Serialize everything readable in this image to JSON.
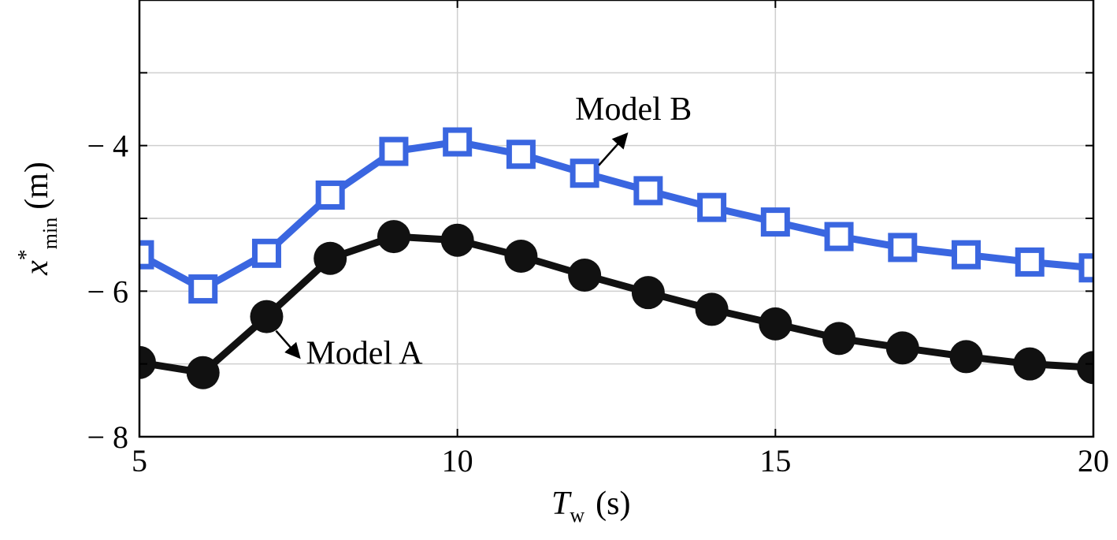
{
  "chart_data": {
    "type": "line",
    "title": "",
    "xlabel": {
      "base": "T",
      "sub": "w",
      "unit": "(s)"
    },
    "ylabel": {
      "base": "x",
      "sup": "*",
      "sub": "min",
      "unit": "(m)"
    },
    "xlim": [
      5,
      20
    ],
    "ylim": [
      -8,
      -2
    ],
    "xticks": [
      5,
      10,
      15,
      20
    ],
    "yticks": [
      -8,
      -6,
      -4
    ],
    "xtick_labels": [
      "5",
      "10",
      "15",
      "20"
    ],
    "ytick_labels": [
      "− 8",
      "− 6",
      "− 4"
    ],
    "grid": true,
    "series": [
      {
        "name": "Model A",
        "color": "#111111",
        "marker": "circle",
        "x": [
          5,
          6,
          7,
          8,
          9,
          10,
          11,
          12,
          13,
          14,
          15,
          16,
          17,
          18,
          19,
          20
        ],
        "y": [
          -6.98,
          -7.12,
          -6.35,
          -5.55,
          -5.25,
          -5.3,
          -5.52,
          -5.78,
          -6.02,
          -6.25,
          -6.45,
          -6.65,
          -6.78,
          -6.9,
          -7.0,
          -7.05
        ]
      },
      {
        "name": "Model B",
        "color": "#3a66e0",
        "marker": "square",
        "x": [
          5,
          6,
          7,
          8,
          9,
          10,
          11,
          12,
          13,
          14,
          15,
          16,
          17,
          18,
          19,
          20
        ],
        "y": [
          -5.5,
          -5.97,
          -5.48,
          -4.68,
          -4.08,
          -3.95,
          -4.12,
          -4.38,
          -4.62,
          -4.85,
          -5.05,
          -5.25,
          -5.4,
          -5.5,
          -5.6,
          -5.68
        ]
      }
    ],
    "annotations": [
      {
        "text": "Model A",
        "series": "Model A",
        "at_x": 7
      },
      {
        "text": "Model B",
        "series": "Model B",
        "at_x": 12
      }
    ]
  }
}
